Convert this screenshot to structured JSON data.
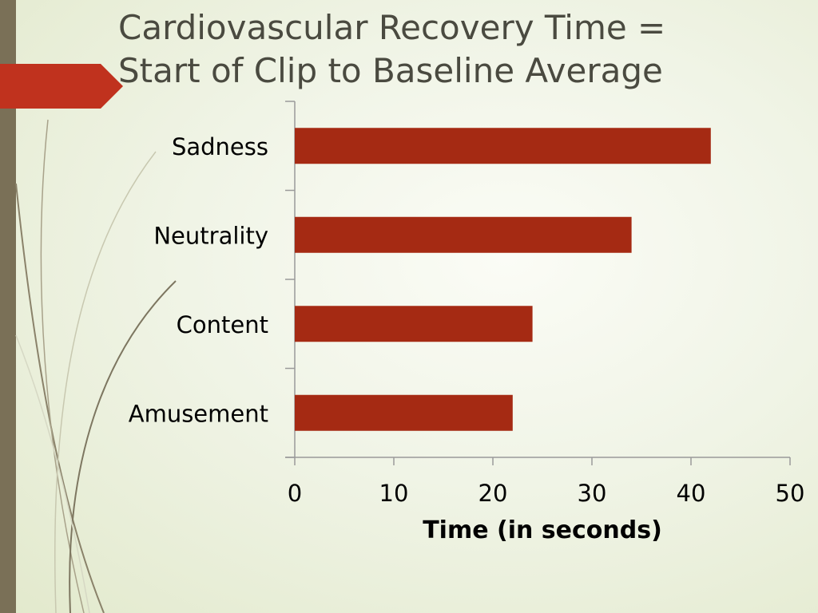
{
  "slide": {
    "title_line1": "Cardiovascular Recovery Time =",
    "title_line2": "Start of Clip to Baseline Average",
    "accent_color": "#c0321e",
    "sidebar_color": "#7a7057"
  },
  "chart_data": {
    "type": "bar",
    "orientation": "horizontal",
    "categories": [
      "Sadness",
      "Neutrality",
      "Content",
      "Amusement"
    ],
    "values": [
      42,
      34,
      24,
      22
    ],
    "xlabel": "Time (in seconds)",
    "ylabel": "",
    "xlim": [
      0,
      50
    ],
    "xticks": [
      0,
      10,
      20,
      30,
      40,
      50
    ],
    "bar_color": "#a52a13",
    "grid": false,
    "legend": "none"
  }
}
